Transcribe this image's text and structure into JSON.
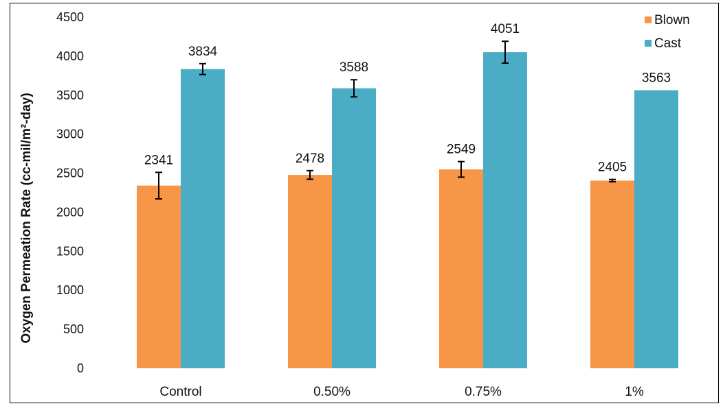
{
  "chart_data": {
    "type": "bar",
    "ylabel": "Oxygen Permeation Rate (cc-mil/m²-day)",
    "xlabel": "",
    "title": "",
    "ylim": [
      0,
      4500
    ],
    "yticks": [
      0,
      500,
      1000,
      1500,
      2000,
      2500,
      3000,
      3500,
      4000,
      4500
    ],
    "grid": false,
    "legend_position": "top-right",
    "categories": [
      "Control",
      "0.50%",
      "0.75%",
      "1%"
    ],
    "series": [
      {
        "name": "Blown",
        "color": "#F79646",
        "values": [
          2341,
          2478,
          2549,
          2405
        ],
        "errors": [
          170,
          55,
          100,
          15
        ],
        "labels": [
          "2341",
          "2478",
          "2549",
          "2405"
        ]
      },
      {
        "name": "Cast",
        "color": "#4BACC6",
        "values": [
          3834,
          3588,
          4051,
          3563
        ],
        "errors": [
          70,
          110,
          140,
          0
        ],
        "labels": [
          "3834",
          "3588",
          "4051",
          "3563"
        ]
      }
    ]
  }
}
